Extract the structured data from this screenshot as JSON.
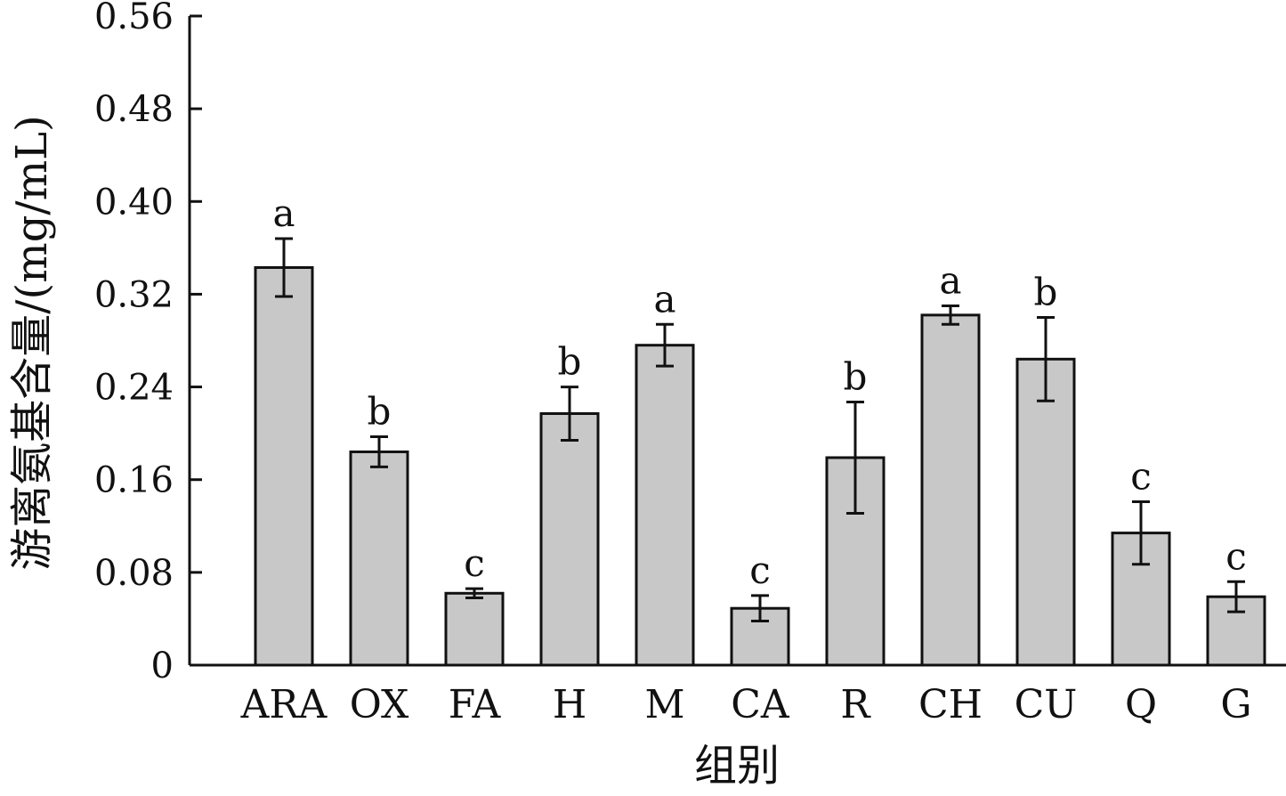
{
  "chart_data": {
    "type": "bar",
    "title": "",
    "xlabel": "组别",
    "ylabel": "游离氨基含量/(mg/mL)",
    "ylim": [
      0,
      0.56
    ],
    "yticks": [
      "0",
      "0.08",
      "0.16",
      "0.24",
      "0.32",
      "0.40",
      "0.48",
      "0.56"
    ],
    "categories": [
      "ARA",
      "OX",
      "FA",
      "H",
      "M",
      "CA",
      "R",
      "CH",
      "CU",
      "Q",
      "G"
    ],
    "values": [
      0.343,
      0.184,
      0.062,
      0.217,
      0.276,
      0.049,
      0.179,
      0.302,
      0.264,
      0.114,
      0.059
    ],
    "errors": [
      0.025,
      0.013,
      0.004,
      0.023,
      0.018,
      0.011,
      0.048,
      0.008,
      0.036,
      0.027,
      0.013
    ],
    "significance": [
      "a",
      "b",
      "c",
      "b",
      "a",
      "c",
      "b",
      "a",
      "b",
      "c",
      "c"
    ],
    "bar_color": "#c8c8c8",
    "edge_color": "#111111",
    "grid": false,
    "legend": "none"
  }
}
